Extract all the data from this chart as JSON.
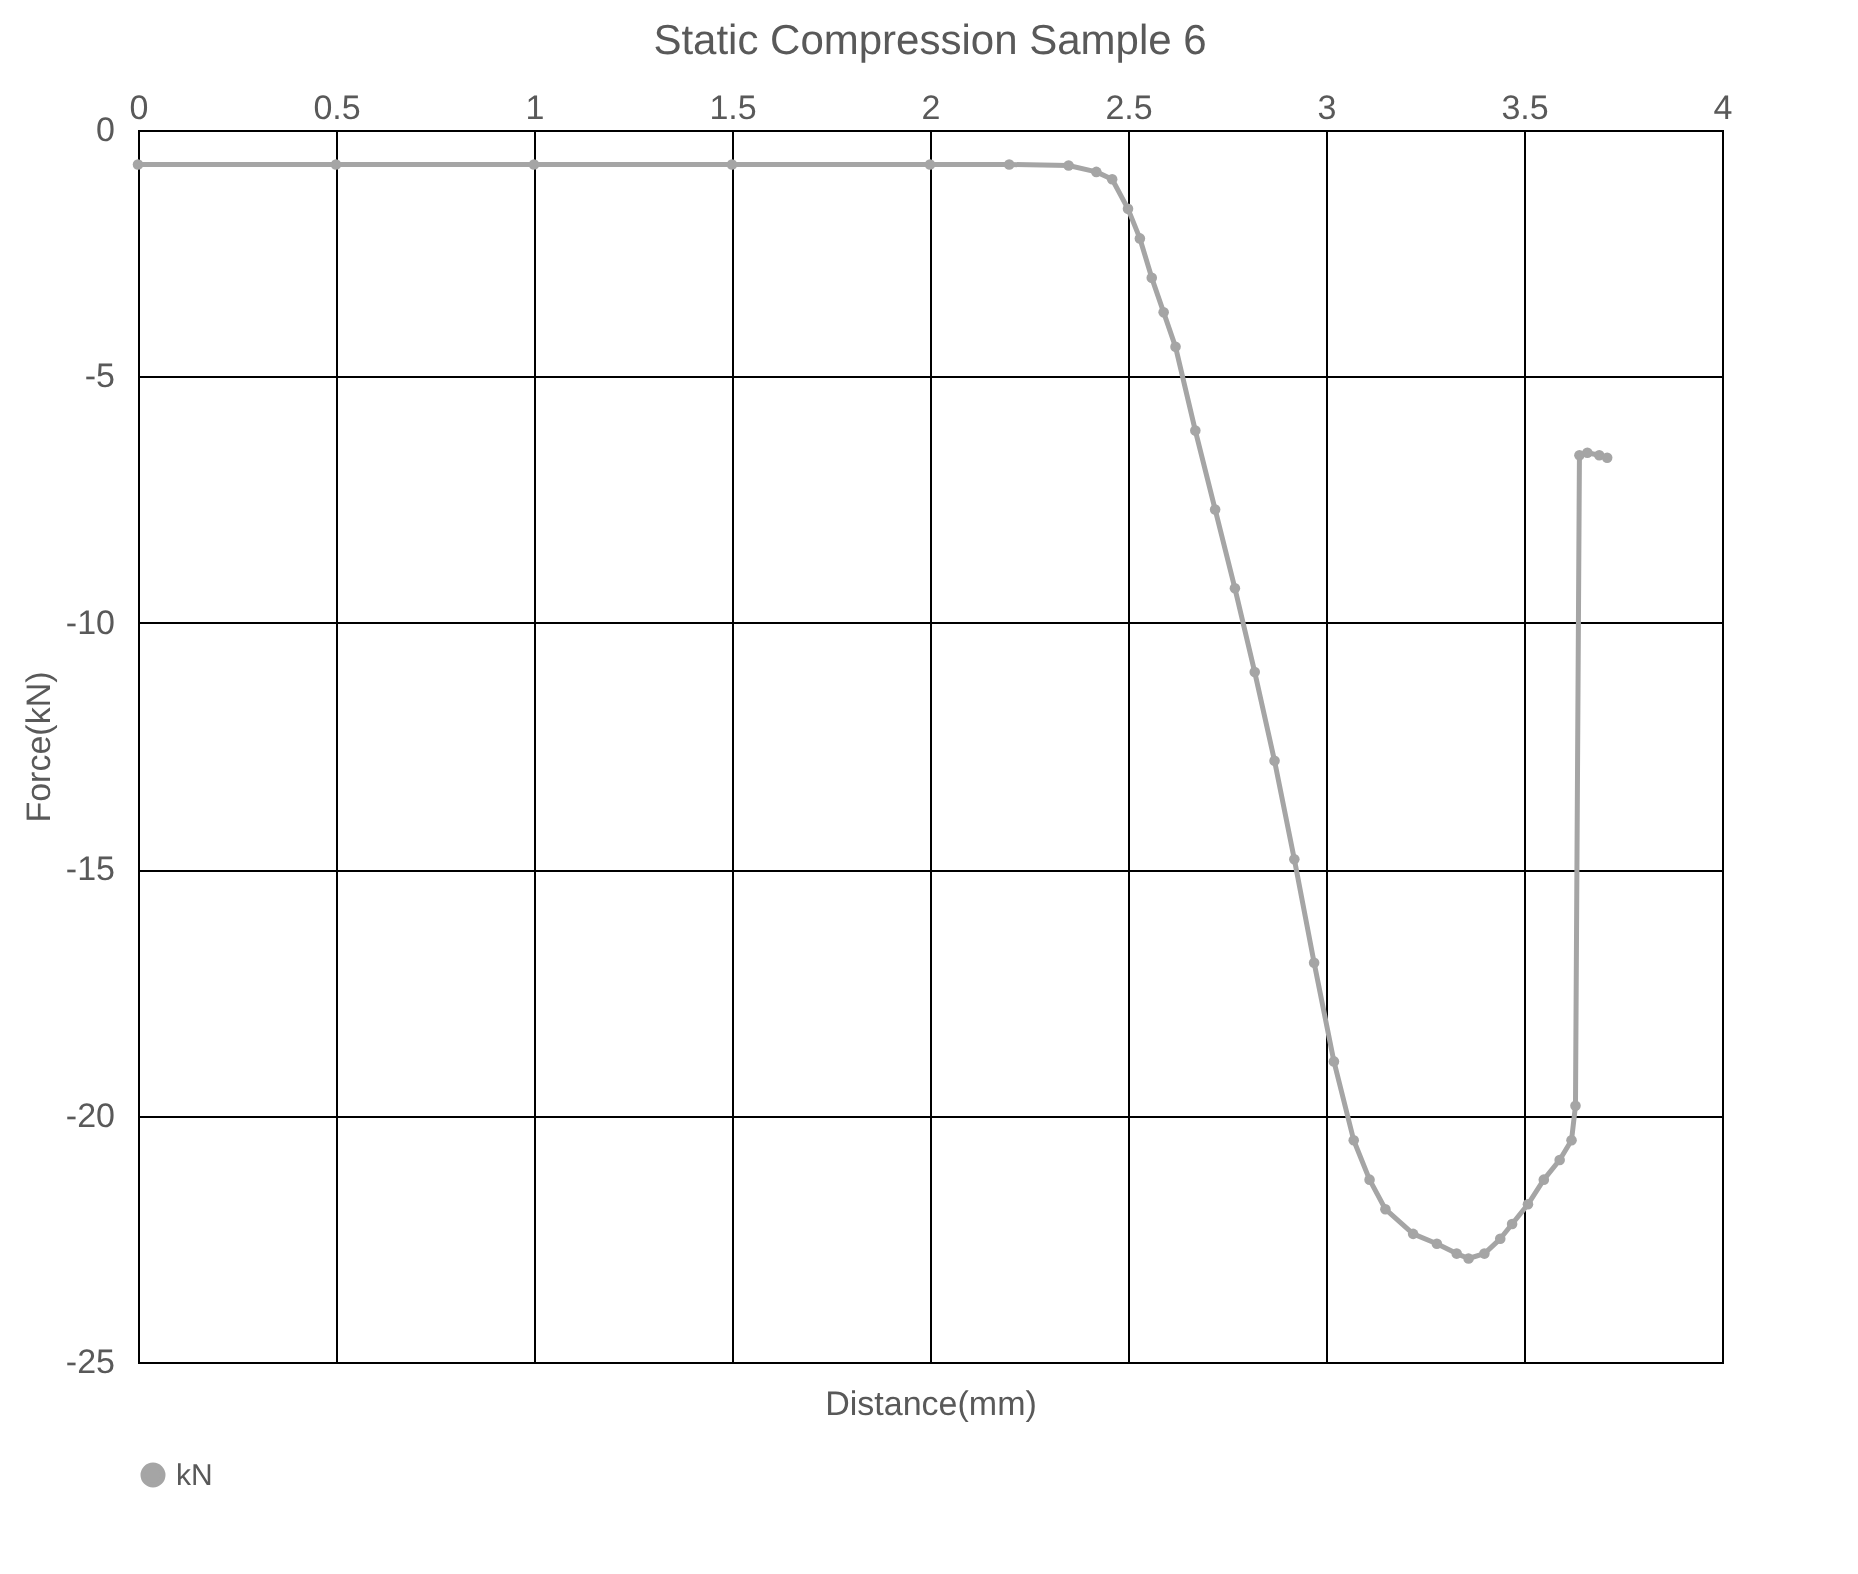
{
  "chart_data": {
    "type": "line",
    "title": "Static Compression Sample 6",
    "xlabel": "Distance(mm)",
    "ylabel": "Force(kN)",
    "x": [
      0,
      0.5,
      1,
      1.5,
      2,
      2.2,
      2.35,
      2.42,
      2.46,
      2.5,
      2.53,
      2.56,
      2.59,
      2.62,
      2.67,
      2.72,
      2.77,
      2.82,
      2.87,
      2.92,
      2.97,
      3.02,
      3.07,
      3.11,
      3.15,
      3.22,
      3.28,
      3.33,
      3.36,
      3.4,
      3.44,
      3.47,
      3.51,
      3.55,
      3.59,
      3.62,
      3.63,
      3.64,
      3.66,
      3.69,
      3.71
    ],
    "series": [
      {
        "name": "kN",
        "color": "#a5a5a5",
        "values": [
          -0.7,
          -0.7,
          -0.7,
          -0.7,
          -0.7,
          -0.7,
          -0.72,
          -0.85,
          -1.0,
          -1.6,
          -2.2,
          -3.0,
          -3.7,
          -4.4,
          -6.1,
          -7.7,
          -9.3,
          -11,
          -12.8,
          -14.8,
          -16.9,
          -18.9,
          -20.5,
          -21.3,
          -21.9,
          -22.4,
          -22.6,
          -22.8,
          -22.9,
          -22.8,
          -22.5,
          -22.2,
          -21.8,
          -21.3,
          -20.9,
          -20.5,
          -19.8,
          -6.6,
          -6.55,
          -6.6,
          -6.65
        ]
      }
    ],
    "xlim": [
      0,
      4
    ],
    "xticks": [
      0,
      0.5,
      1,
      1.5,
      2,
      2.5,
      3,
      3.5,
      4
    ],
    "ylim": [
      -25,
      0
    ],
    "yticks": [
      -25,
      -20,
      -15,
      -10,
      -5,
      0
    ],
    "grid": true,
    "legend": "bottom",
    "marker": "circle",
    "line_style": "solid"
  }
}
